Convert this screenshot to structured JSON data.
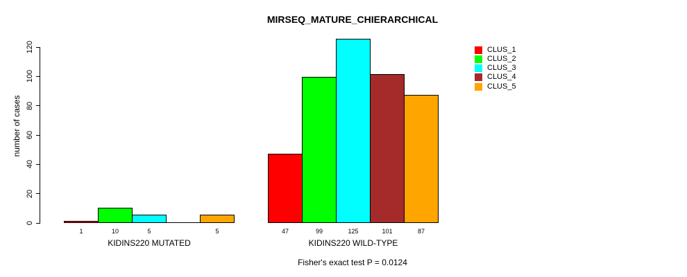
{
  "chart_data": {
    "type": "bar",
    "title": "MIRSEQ_MATURE_CHIERARCHICAL",
    "ylabel": "number of cases",
    "xlabel": "",
    "ylim": [
      0,
      120
    ],
    "yticks": [
      0,
      20,
      40,
      60,
      80,
      100,
      120
    ],
    "grid": false,
    "background": "#FFFFFF",
    "axis_color": "#000000",
    "bar_border_color": "#000000",
    "legend": {
      "position": "top-right",
      "entries": [
        {
          "label": "CLUS_1",
          "color": "#FF0000"
        },
        {
          "label": "CLUS_2",
          "color": "#00FF00"
        },
        {
          "label": "CLUS_3",
          "color": "#00FFFF"
        },
        {
          "label": "CLUS_4",
          "color": "#A52A2A"
        },
        {
          "label": "CLUS_5",
          "color": "#FFA500"
        }
      ]
    },
    "groups": [
      {
        "label": "KIDINS220 MUTATED",
        "values": [
          1,
          10,
          5,
          0,
          5
        ],
        "bar_labels": [
          "1",
          "10",
          "5",
          "",
          "5"
        ]
      },
      {
        "label": "KIDINS220 WILD-TYPE",
        "values": [
          47,
          99,
          125,
          101,
          87
        ],
        "bar_labels": [
          "47",
          "99",
          "125",
          "101",
          "87"
        ]
      }
    ],
    "annotation": "Fisher's exact test P = 0.0124"
  }
}
